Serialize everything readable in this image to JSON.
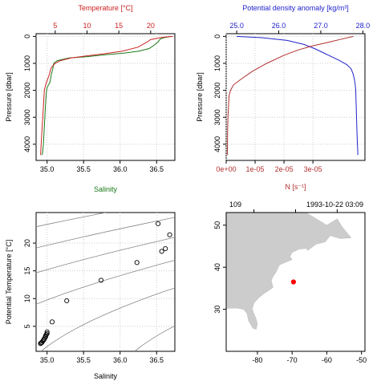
{
  "colors": {
    "salinity": "#1a7a1a",
    "temperature": "#cc2222",
    "density": "#2222cc",
    "N": "#b03030",
    "station": "#ff0000",
    "land": "#cccccc",
    "grid": "#cccccc",
    "axis": "#000000"
  },
  "chart_data": [
    {
      "id": "ts-profile",
      "type": "line",
      "xlabel": "Salinity",
      "x2label": "Temperature [°C]",
      "ylabel": "Pressure [dbar]",
      "xlim": [
        34.85,
        36.75
      ],
      "x2lim": [
        2.0,
        23.8
      ],
      "ylim": [
        4600,
        -100
      ],
      "x_ticks": [
        "35.0",
        "35.5",
        "36.0",
        "36.5"
      ],
      "x2_ticks": [
        "5",
        "10",
        "15",
        "20"
      ],
      "y_ticks": [
        "0",
        "1000",
        "2000",
        "3000",
        "4000"
      ],
      "grid": true,
      "series": [
        {
          "key": "salinity",
          "axis": "x",
          "x": [
            36.7,
            36.6,
            36.55,
            36.52,
            36.48,
            36.4,
            36.25,
            36.05,
            35.8,
            35.55,
            35.3,
            35.14,
            35.09,
            35.08,
            35.06,
            35.04,
            35.0,
            34.99,
            34.98,
            34.97,
            34.96,
            34.95,
            34.94,
            34.93
          ],
          "y": [
            0,
            50,
            100,
            200,
            300,
            450,
            550,
            620,
            680,
            750,
            800,
            900,
            1000,
            1200,
            1400,
            1700,
            1900,
            2100,
            2500,
            3000,
            3500,
            4000,
            4300,
            4400
          ]
        },
        {
          "key": "temperature",
          "axis": "x2",
          "x": [
            23.5,
            22.5,
            21.5,
            20.0,
            19.5,
            18.0,
            15.5,
            12.5,
            10.0,
            7.5,
            5.8,
            5.0,
            4.6,
            4.3,
            4.1,
            3.8,
            3.5,
            3.3,
            3.2,
            3.1,
            3.0,
            2.9,
            2.8,
            2.7
          ],
          "y": [
            0,
            20,
            50,
            120,
            200,
            400,
            550,
            650,
            720,
            800,
            900,
            1000,
            1100,
            1200,
            1400,
            1600,
            1800,
            2000,
            2400,
            2800,
            3200,
            3600,
            4000,
            4400
          ]
        }
      ]
    },
    {
      "id": "density-profile",
      "type": "line",
      "xlabel": "N [s⁻¹]",
      "x2label": "Potential density anomaly [kg/m³]",
      "ylabel": "Pressure [dbar]",
      "xlim": [
        0,
        4.8e-05
      ],
      "x2lim": [
        24.75,
        28.05
      ],
      "ylim": [
        4600,
        -100
      ],
      "x_ticks": [
        "0e+00",
        "1e-05",
        "2e-05",
        "3e-05"
      ],
      "x2_ticks": [
        "25.0",
        "26.0",
        "27.0",
        "28.0"
      ],
      "y_ticks": [
        "0",
        "1000",
        "2000",
        "3000",
        "4000"
      ],
      "grid": true,
      "series": [
        {
          "key": "density",
          "axis": "x2",
          "x": [
            25.0,
            25.6,
            26.2,
            26.6,
            26.85,
            27.05,
            27.25,
            27.45,
            27.62,
            27.72,
            27.77,
            27.8,
            27.82,
            27.83,
            27.84,
            27.85,
            27.86,
            27.87,
            27.88,
            27.88
          ],
          "y": [
            0,
            50,
            150,
            300,
            450,
            600,
            750,
            900,
            1050,
            1200,
            1400,
            1600,
            1800,
            2000,
            2500,
            3000,
            3500,
            4000,
            4300,
            4400
          ]
        },
        {
          "key": "N",
          "axis": "x",
          "x": [
            4.4e-05,
            4e-05,
            3.6e-05,
            3e-05,
            2.5e-05,
            2e-05,
            1.4e-05,
            9e-06,
            5e-06,
            2.5e-06,
            1.5e-06,
            1e-06,
            8e-07,
            6e-07,
            5e-07,
            4e-07
          ],
          "y": [
            0,
            100,
            200,
            350,
            500,
            700,
            1000,
            1300,
            1600,
            1800,
            2000,
            2200,
            2600,
            3000,
            3500,
            4400
          ]
        }
      ]
    },
    {
      "id": "ts-diagram",
      "type": "scatter",
      "xlabel": "Salinity",
      "ylabel": "Potential Temperature [°C]",
      "xlim": [
        34.85,
        36.75
      ],
      "ylim": [
        0.5,
        25.5
      ],
      "x_ticks": [
        "35.0",
        "35.5",
        "36.0",
        "36.5"
      ],
      "y_ticks": [
        "5",
        "10",
        "15",
        "20"
      ],
      "grid": true,
      "points": {
        "x": [
          36.52,
          36.68,
          36.62,
          36.57,
          36.23,
          35.74,
          35.27,
          35.07,
          35.0,
          35.0,
          34.99,
          34.98,
          34.98,
          34.97,
          34.96,
          34.95,
          34.94,
          34.93,
          34.92,
          34.91
        ],
        "y": [
          23.5,
          21.5,
          19.0,
          18.5,
          16.5,
          13.3,
          9.6,
          5.8,
          4.0,
          3.7,
          3.5,
          3.3,
          3.1,
          2.9,
          2.7,
          2.5,
          2.3,
          2.1,
          2.0,
          1.9
        ]
      },
      "isopycnals": {
        "sigma": [
          23,
          24,
          25,
          26,
          27,
          28,
          29
        ]
      }
    },
    {
      "id": "station-map",
      "type": "map",
      "station_label": "109",
      "datetime": "1993-10-22 03:09",
      "xlim": [
        -89,
        -49
      ],
      "ylim": [
        20,
        53
      ],
      "x_ticks": [
        "-80",
        "-70",
        "-60",
        "-50"
      ],
      "y_ticks": [
        "30",
        "40",
        "50"
      ],
      "station": {
        "lon": -69.6,
        "lat": 36.5
      }
    }
  ]
}
